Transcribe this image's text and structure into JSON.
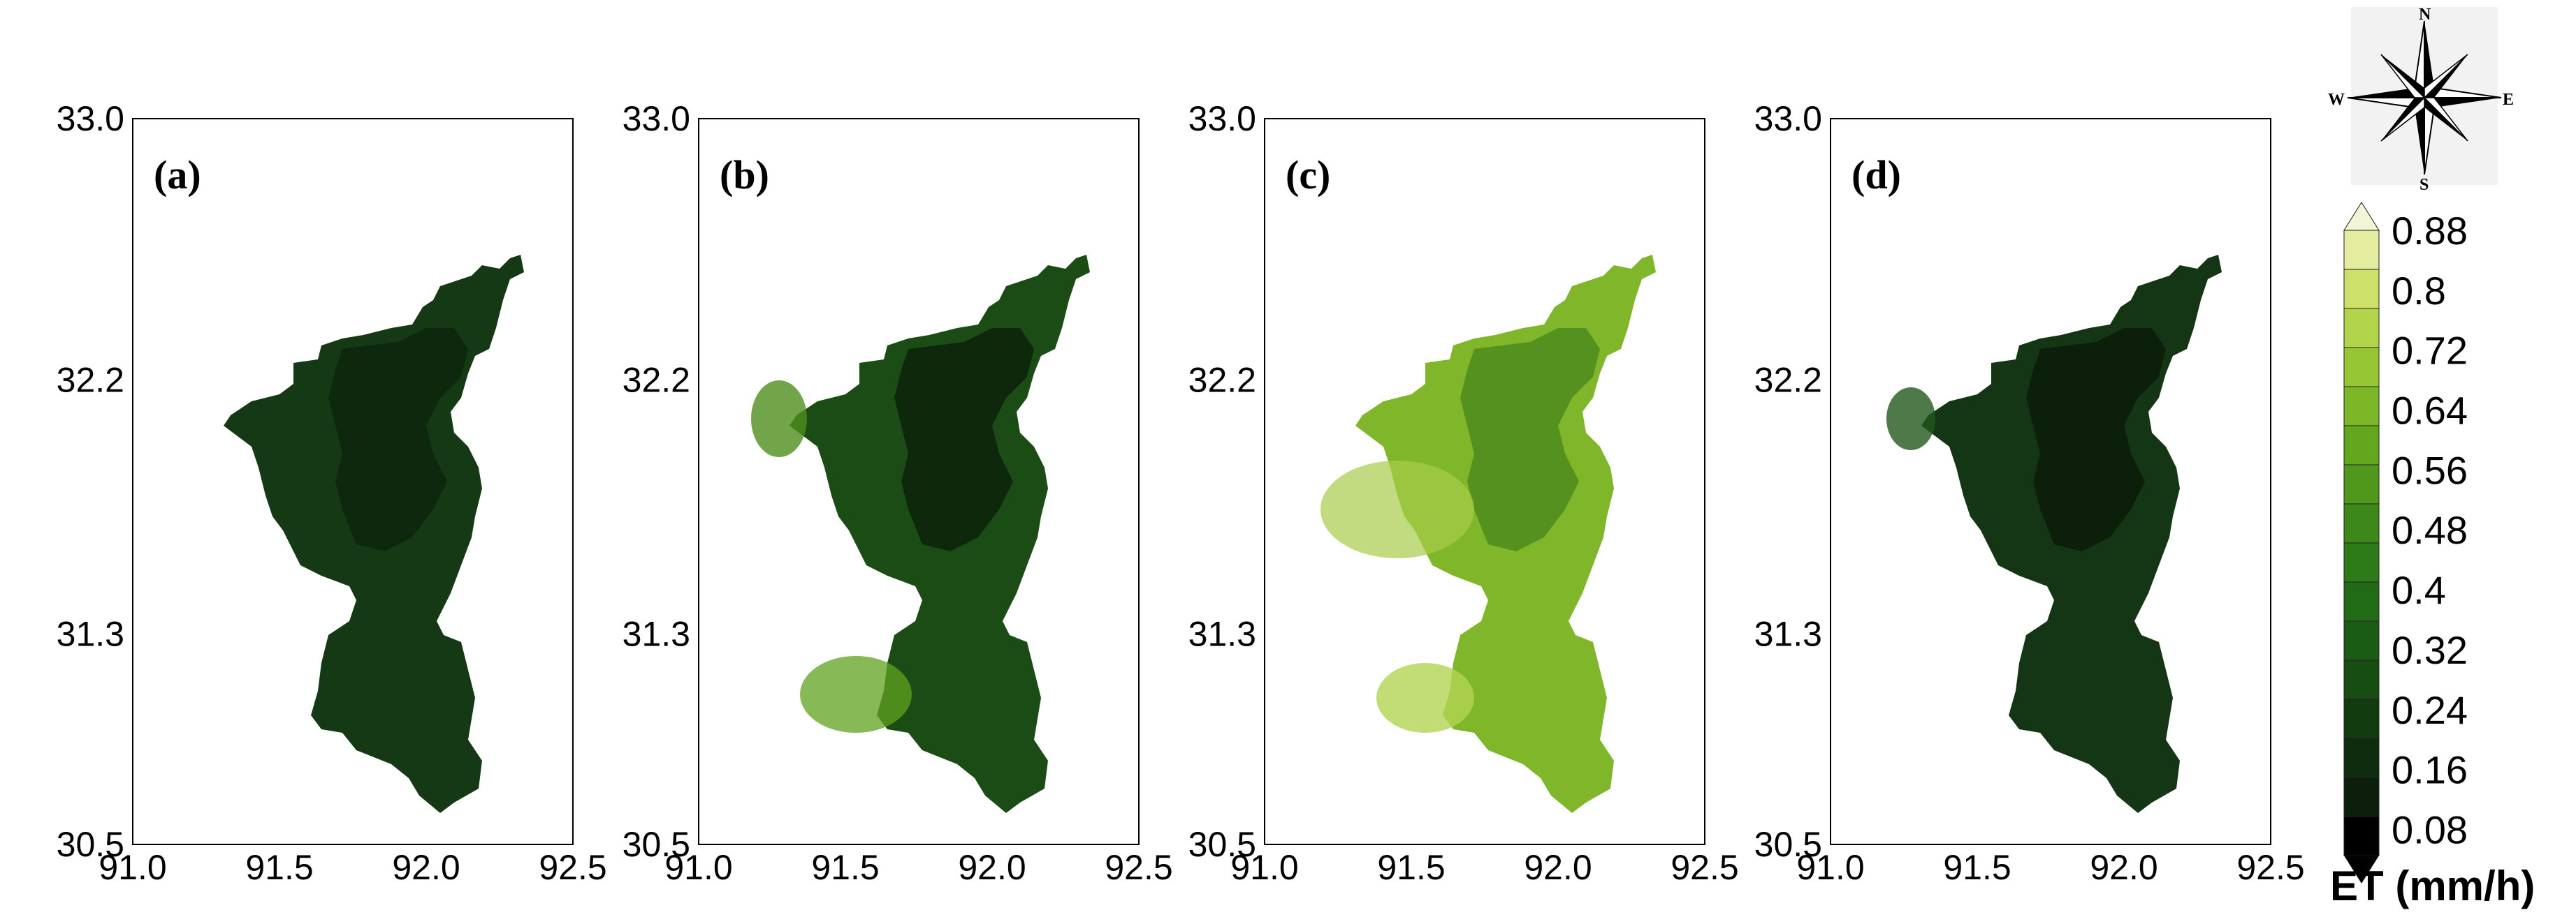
{
  "panels": [
    {
      "label": "(a)",
      "scheme": "a"
    },
    {
      "label": "(b)",
      "scheme": "b"
    },
    {
      "label": "(c)",
      "scheme": "c"
    },
    {
      "label": "(d)",
      "scheme": "d"
    }
  ],
  "axes": {
    "lon_ticks": [
      "91.0",
      "91.5",
      "92.0",
      "92.5"
    ],
    "lat_ticks": [
      "33.0",
      "32.2",
      "31.3",
      "30.5"
    ],
    "lon_range": [
      91.0,
      92.5
    ],
    "lat_range": [
      30.5,
      33.0
    ]
  },
  "colorbar": {
    "title": "ET (mm/h)",
    "levels": [
      "0.88",
      "0.8",
      "0.72",
      "0.64",
      "0.56",
      "0.48",
      "0.4",
      "0.32",
      "0.24",
      "0.16",
      "0.08"
    ],
    "colors": [
      "#000000",
      "#0c1f0c",
      "#0e2c0e",
      "#123c10",
      "#174c12",
      "#1b5c14",
      "#216b16",
      "#2c7a18",
      "#3c891a",
      "#4f981c",
      "#63a71e",
      "#7bb726",
      "#96c634",
      "#b1d44a",
      "#cde06a",
      "#e4eca0"
    ]
  },
  "compass": {
    "north": "N",
    "south": "S",
    "east": "E",
    "west": "W"
  }
}
